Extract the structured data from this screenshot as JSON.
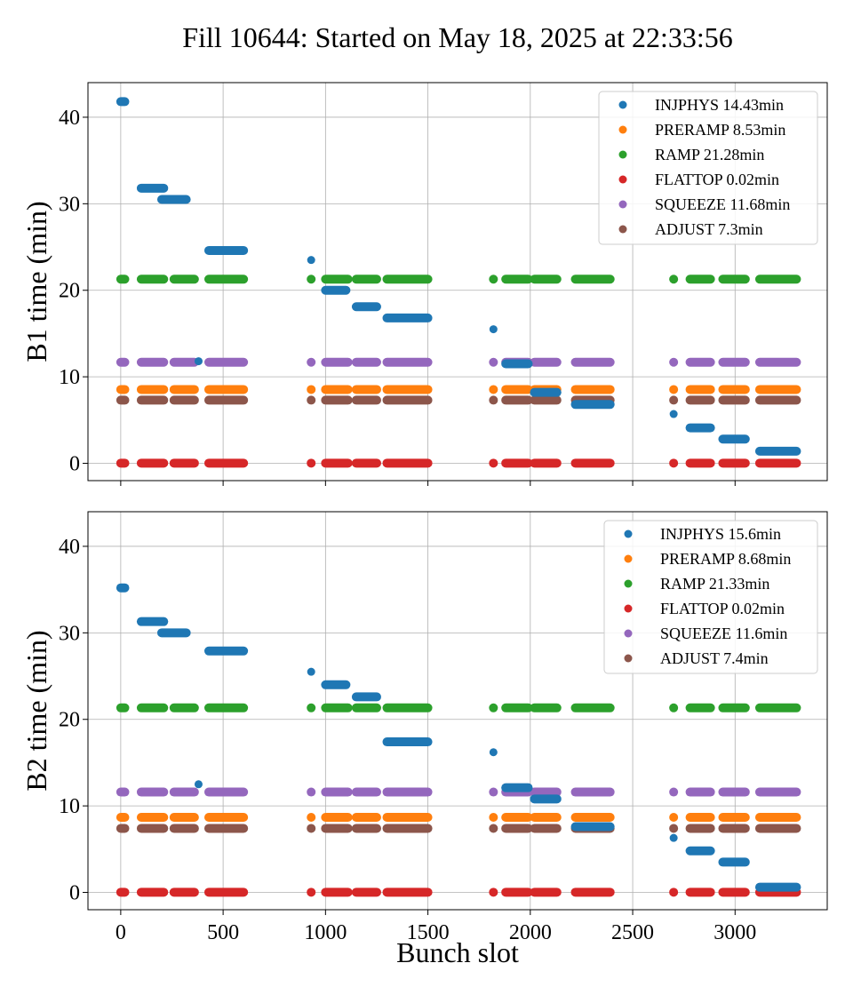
{
  "title": "Fill 10644: Started on May 18, 2025 at 22:33:56",
  "colors": {
    "INJPHYS": "#1f77b4",
    "PRERAMP": "#ff7f0e",
    "RAMP": "#2ca02c",
    "FLATTOP": "#d62728",
    "SQUEEZE": "#9467bd",
    "ADJUST": "#8c564b"
  },
  "chart_data": [
    {
      "type": "scatter",
      "xlabel": "",
      "ylabel": "B1 time (min)",
      "xlim": [
        -160,
        3450
      ],
      "ylim": [
        -2,
        44
      ],
      "xticks": [
        "0",
        "500",
        "1000",
        "1500",
        "2000",
        "2500",
        "3000"
      ],
      "yticks": [
        "0",
        "10",
        "20",
        "30",
        "40"
      ],
      "grid": true,
      "legend_position": "top-right",
      "series": [
        {
          "name": "INJPHYS 14.43min",
          "key": "INJPHYS",
          "segments": [
            [
              0,
              41.8
            ],
            [
              100,
              31.8
            ],
            [
              200,
              30.5
            ],
            [
              320,
              30.5
            ],
            [
              380,
              11.8
            ],
            [
              430,
              24.6
            ],
            [
              600,
              24.6
            ],
            [
              930,
              23.5
            ],
            [
              1000,
              20.0
            ],
            [
              1100,
              20.0
            ],
            [
              1150,
              18.1
            ],
            [
              1250,
              18.1
            ],
            [
              1300,
              16.8
            ],
            [
              1500,
              16.8
            ],
            [
              1820,
              15.5
            ],
            [
              1880,
              11.5
            ],
            [
              1990,
              11.5
            ],
            [
              2020,
              8.2
            ],
            [
              2130,
              8.2
            ],
            [
              2220,
              6.8
            ],
            [
              2390,
              6.8
            ],
            [
              2700,
              5.7
            ],
            [
              2780,
              4.1
            ],
            [
              2880,
              4.1
            ],
            [
              2940,
              2.8
            ],
            [
              3050,
              2.8
            ],
            [
              3120,
              1.4
            ],
            [
              3300,
              1.4
            ]
          ]
        },
        {
          "name": "PRERAMP 8.53min",
          "key": "PRERAMP"
        },
        {
          "name": "RAMP 21.28min",
          "key": "RAMP"
        },
        {
          "name": "FLATTOP 0.02min",
          "key": "FLATTOP"
        },
        {
          "name": "SQUEEZE 11.68min",
          "key": "SQUEEZE"
        },
        {
          "name": "ADJUST 7.3min",
          "key": "ADJUST"
        }
      ],
      "constant_values": {
        "PRERAMP": 8.53,
        "RAMP": 21.28,
        "FLATTOP": 0.02,
        "SQUEEZE": 11.68,
        "ADJUST": 7.3
      }
    },
    {
      "type": "scatter",
      "xlabel": "Bunch slot",
      "ylabel": "B2 time (min)",
      "xlim": [
        -160,
        3450
      ],
      "ylim": [
        -2,
        44
      ],
      "xticks": [
        "0",
        "500",
        "1000",
        "1500",
        "2000",
        "2500",
        "3000"
      ],
      "yticks": [
        "0",
        "10",
        "20",
        "30",
        "40"
      ],
      "grid": true,
      "legend_position": "top-right",
      "series": [
        {
          "name": "INJPHYS 15.6min",
          "key": "INJPHYS",
          "segments": [
            [
              0,
              35.2
            ],
            [
              100,
              31.3
            ],
            [
              200,
              30.0
            ],
            [
              320,
              30.0
            ],
            [
              380,
              12.5
            ],
            [
              430,
              27.9
            ],
            [
              600,
              27.9
            ],
            [
              930,
              25.5
            ],
            [
              1000,
              24.0
            ],
            [
              1100,
              24.0
            ],
            [
              1150,
              22.6
            ],
            [
              1250,
              22.6
            ],
            [
              1300,
              17.4
            ],
            [
              1500,
              17.4
            ],
            [
              1820,
              16.2
            ],
            [
              1880,
              12.1
            ],
            [
              1990,
              12.1
            ],
            [
              2020,
              10.8
            ],
            [
              2130,
              10.8
            ],
            [
              2220,
              7.6
            ],
            [
              2390,
              7.6
            ],
            [
              2700,
              6.3
            ],
            [
              2780,
              4.8
            ],
            [
              2880,
              4.8
            ],
            [
              2940,
              3.5
            ],
            [
              3050,
              3.5
            ],
            [
              3120,
              0.6
            ],
            [
              3300,
              0.6
            ]
          ]
        },
        {
          "name": "PRERAMP 8.68min",
          "key": "PRERAMP"
        },
        {
          "name": "RAMP 21.33min",
          "key": "RAMP"
        },
        {
          "name": "FLATTOP 0.02min",
          "key": "FLATTOP"
        },
        {
          "name": "SQUEEZE 11.6min",
          "key": "SQUEEZE"
        },
        {
          "name": "ADJUST 7.4min",
          "key": "ADJUST"
        }
      ],
      "constant_values": {
        "PRERAMP": 8.68,
        "RAMP": 21.33,
        "FLATTOP": 0.02,
        "SQUEEZE": 11.6,
        "ADJUST": 7.4
      }
    }
  ],
  "bunch_trains": [
    [
      0,
      20
    ],
    [
      100,
      210
    ],
    [
      260,
      360
    ],
    [
      430,
      600
    ],
    [
      930,
      930
    ],
    [
      1000,
      1110
    ],
    [
      1150,
      1250
    ],
    [
      1300,
      1500
    ],
    [
      1820,
      1820
    ],
    [
      1880,
      1990
    ],
    [
      2020,
      2130
    ],
    [
      2220,
      2390
    ],
    [
      2700,
      2700
    ],
    [
      2780,
      2880
    ],
    [
      2940,
      3050
    ],
    [
      3120,
      3300
    ]
  ]
}
